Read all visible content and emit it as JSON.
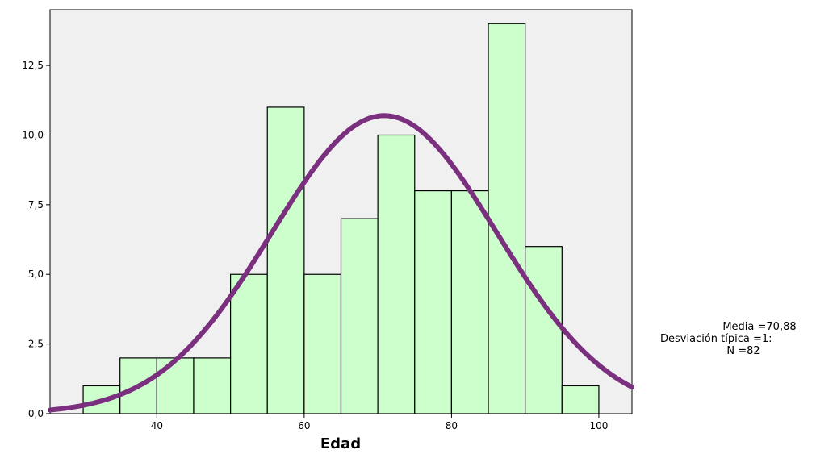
{
  "chart_data": {
    "type": "bar",
    "subtype": "histogram-with-normal-curve",
    "xlabel": "Edad",
    "ylabel": "",
    "xlim": [
      25.5,
      104.5
    ],
    "ylim": [
      0,
      14.5
    ],
    "x_ticks": [
      40,
      60,
      80,
      100
    ],
    "x_tick_labels": [
      "40",
      "60",
      "80",
      "100"
    ],
    "y_ticks": [
      0,
      2.5,
      5,
      7.5,
      10,
      12.5
    ],
    "y_tick_labels": [
      "0,0",
      "2,5",
      "5,0",
      "7,5",
      "10,0",
      "12,5"
    ],
    "bin_width": 5,
    "bins": [
      {
        "start": 30,
        "end": 35,
        "count": 1
      },
      {
        "start": 35,
        "end": 40,
        "count": 2
      },
      {
        "start": 40,
        "end": 45,
        "count": 2
      },
      {
        "start": 45,
        "end": 50,
        "count": 2
      },
      {
        "start": 50,
        "end": 55,
        "count": 5
      },
      {
        "start": 55,
        "end": 60,
        "count": 11
      },
      {
        "start": 60,
        "end": 65,
        "count": 5
      },
      {
        "start": 65,
        "end": 70,
        "count": 7
      },
      {
        "start": 70,
        "end": 75,
        "count": 10
      },
      {
        "start": 75,
        "end": 80,
        "count": 8
      },
      {
        "start": 80,
        "end": 85,
        "count": 8
      },
      {
        "start": 85,
        "end": 90,
        "count": 14
      },
      {
        "start": 90,
        "end": 95,
        "count": 6
      },
      {
        "start": 95,
        "end": 100,
        "count": 1
      }
    ],
    "normal_curve": {
      "mean": 70.88,
      "n": 82,
      "peak": 10.7
    },
    "grid": false,
    "colors": {
      "bar_fill": "#ccffcc",
      "bar_stroke": "#000000",
      "plot_bg": "#f0f0f0",
      "curve": "#7b2f7f"
    }
  },
  "stats": {
    "mean_label": "Media =70,88",
    "sd_label": "Desviación típica =1:",
    "n_label": "N =82"
  }
}
